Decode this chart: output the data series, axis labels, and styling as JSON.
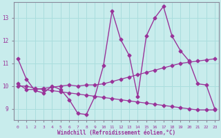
{
  "xlabel": "Windchill (Refroidissement éolien,°C)",
  "bg_color": "#c8ecec",
  "line_color": "#993399",
  "grid_color": "#aadddd",
  "axis_color": "#888899",
  "xlim": [
    -0.5,
    23.5
  ],
  "ylim": [
    8.5,
    13.7
  ],
  "xticks": [
    0,
    1,
    2,
    3,
    4,
    5,
    6,
    7,
    8,
    9,
    10,
    11,
    12,
    13,
    14,
    15,
    16,
    17,
    18,
    19,
    20,
    21,
    22,
    23
  ],
  "yticks": [
    9,
    10,
    11,
    12,
    13
  ],
  "series_A_x": [
    0,
    1,
    2,
    3,
    4,
    5,
    6,
    7,
    8,
    9,
    10,
    11,
    12,
    13,
    14,
    15,
    16,
    17,
    18,
    19,
    20,
    21,
    22,
    23
  ],
  "series_A_y": [
    11.2,
    10.3,
    9.8,
    9.7,
    10.0,
    9.85,
    9.4,
    8.8,
    8.75,
    9.55,
    10.9,
    13.3,
    12.05,
    11.35,
    9.55,
    12.2,
    13.0,
    13.5,
    12.2,
    11.55,
    11.1,
    10.1,
    10.05,
    9.0
  ],
  "series_B_x": [
    0,
    1,
    2,
    3,
    4,
    5,
    6,
    7,
    8,
    9,
    10,
    11,
    12,
    13,
    14,
    15,
    16,
    17,
    18,
    19,
    20,
    21,
    22,
    23
  ],
  "series_B_y": [
    10.1,
    9.85,
    9.85,
    9.9,
    9.95,
    10.0,
    10.05,
    10.0,
    10.05,
    10.05,
    10.1,
    10.2,
    10.3,
    10.4,
    10.5,
    10.6,
    10.7,
    10.8,
    10.9,
    11.0,
    11.05,
    11.1,
    11.15,
    11.2
  ],
  "series_C_x": [
    0,
    1,
    2,
    3,
    4,
    5,
    6,
    7,
    8,
    9,
    10,
    11,
    12,
    13,
    14,
    15,
    16,
    17,
    18,
    19,
    20,
    21,
    22,
    23
  ],
  "series_C_y": [
    10.0,
    10.0,
    9.9,
    9.85,
    9.8,
    9.75,
    9.7,
    9.65,
    9.6,
    9.55,
    9.5,
    9.45,
    9.4,
    9.35,
    9.3,
    9.25,
    9.2,
    9.15,
    9.1,
    9.05,
    9.0,
    8.95,
    8.95,
    8.95
  ]
}
